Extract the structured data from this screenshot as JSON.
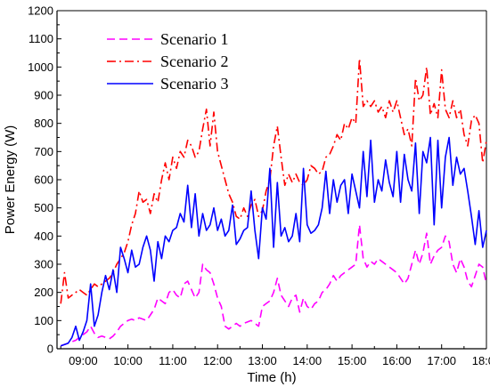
{
  "chart_data": {
    "type": "line",
    "title": "",
    "xlabel": "Time (h)",
    "ylabel": "Power Energy (W)",
    "xlim": [
      "08:25",
      "18:00"
    ],
    "ylim": [
      0,
      1200
    ],
    "x_ticks": [
      "09:00",
      "10:00",
      "11:00",
      "12:00",
      "13:00",
      "14:00",
      "15:00",
      "16:00",
      "17:00",
      "18:00"
    ],
    "y_ticks": [
      0,
      100,
      200,
      300,
      400,
      500,
      600,
      700,
      800,
      900,
      1000,
      1100,
      1200
    ],
    "grid": false,
    "legend_position": "top-left",
    "colors": {
      "Scenario 1": "#ff00ff",
      "Scenario 2": "#ff0000",
      "Scenario 3": "#0000ff"
    },
    "dash_styles": {
      "Scenario 1": "dashed",
      "Scenario 2": "dash-dot",
      "Scenario 3": "solid"
    },
    "x": [
      "08:30",
      "08:35",
      "08:40",
      "08:45",
      "08:50",
      "08:55",
      "09:00",
      "09:05",
      "09:10",
      "09:15",
      "09:20",
      "09:25",
      "09:30",
      "09:35",
      "09:40",
      "09:45",
      "09:50",
      "09:55",
      "10:00",
      "10:05",
      "10:10",
      "10:15",
      "10:20",
      "10:25",
      "10:30",
      "10:35",
      "10:40",
      "10:45",
      "10:50",
      "10:55",
      "11:00",
      "11:05",
      "11:10",
      "11:15",
      "11:20",
      "11:25",
      "11:30",
      "11:35",
      "11:40",
      "11:45",
      "11:50",
      "11:55",
      "12:00",
      "12:05",
      "12:10",
      "12:15",
      "12:20",
      "12:25",
      "12:30",
      "12:35",
      "12:40",
      "12:45",
      "12:50",
      "12:55",
      "13:00",
      "13:05",
      "13:10",
      "13:15",
      "13:20",
      "13:25",
      "13:30",
      "13:35",
      "13:40",
      "13:45",
      "13:50",
      "13:55",
      "14:00",
      "14:05",
      "14:10",
      "14:15",
      "14:20",
      "14:25",
      "14:30",
      "14:35",
      "14:40",
      "14:45",
      "14:50",
      "14:55",
      "15:00",
      "15:05",
      "15:10",
      "15:15",
      "15:20",
      "15:25",
      "15:30",
      "15:35",
      "15:40",
      "15:45",
      "15:50",
      "15:55",
      "16:00",
      "16:05",
      "16:10",
      "16:15",
      "16:20",
      "16:25",
      "16:30",
      "16:35",
      "16:40",
      "16:45",
      "16:50",
      "16:55",
      "17:00",
      "17:05",
      "17:10",
      "17:15",
      "17:20",
      "17:25",
      "17:30",
      "17:35",
      "17:40",
      "17:45",
      "17:50",
      "17:55",
      "18:00"
    ],
    "series": [
      {
        "name": "Scenario 1",
        "values": [
          10,
          15,
          20,
          25,
          30,
          40,
          50,
          60,
          80,
          55,
          40,
          45,
          40,
          35,
          45,
          60,
          80,
          90,
          100,
          105,
          100,
          110,
          105,
          100,
          120,
          140,
          180,
          170,
          160,
          200,
          210,
          190,
          180,
          230,
          240,
          210,
          180,
          200,
          300,
          280,
          270,
          230,
          180,
          150,
          80,
          70,
          80,
          90,
          80,
          90,
          95,
          100,
          90,
          80,
          150,
          160,
          170,
          200,
          250,
          190,
          170,
          150,
          180,
          190,
          130,
          180,
          150,
          140,
          160,
          170,
          200,
          210,
          230,
          260,
          240,
          260,
          270,
          280,
          290,
          300,
          440,
          320,
          290,
          310,
          300,
          320,
          310,
          300,
          290,
          280,
          270,
          250,
          230,
          250,
          300,
          350,
          300,
          340,
          410,
          300,
          330,
          350,
          360,
          400,
          380,
          300,
          270,
          320,
          290,
          240,
          220,
          260,
          300,
          290,
          230
        ]
      },
      {
        "name": "Scenario 2",
        "values": [
          160,
          270,
          180,
          190,
          200,
          210,
          200,
          190,
          210,
          230,
          220,
          230,
          240,
          250,
          270,
          300,
          320,
          340,
          380,
          440,
          480,
          560,
          520,
          530,
          480,
          550,
          520,
          600,
          660,
          600,
          680,
          640,
          700,
          680,
          740,
          720,
          680,
          700,
          780,
          850,
          720,
          840,
          700,
          650,
          600,
          550,
          520,
          470,
          460,
          500,
          470,
          510,
          530,
          470,
          490,
          560,
          600,
          720,
          790,
          680,
          580,
          620,
          590,
          620,
          590,
          580,
          600,
          650,
          640,
          620,
          630,
          680,
          690,
          720,
          760,
          740,
          800,
          780,
          820,
          800,
          1030,
          860,
          880,
          860,
          880,
          840,
          860,
          820,
          880,
          840,
          880,
          820,
          760,
          780,
          720,
          960,
          880,
          900,
          1000,
          830,
          870,
          820,
          990,
          850,
          820,
          880,
          820,
          850,
          760,
          720,
          810,
          830,
          800,
          660,
          740
        ]
      },
      {
        "name": "Scenario 3",
        "values": [
          10,
          15,
          20,
          40,
          80,
          30,
          60,
          100,
          230,
          80,
          120,
          200,
          260,
          210,
          280,
          200,
          360,
          320,
          270,
          350,
          290,
          300,
          360,
          400,
          350,
          240,
          380,
          320,
          400,
          380,
          420,
          430,
          480,
          450,
          580,
          430,
          550,
          400,
          480,
          420,
          440,
          500,
          420,
          460,
          400,
          420,
          510,
          370,
          390,
          420,
          430,
          560,
          420,
          320,
          500,
          460,
          640,
          360,
          590,
          400,
          430,
          380,
          400,
          480,
          380,
          640,
          440,
          410,
          420,
          440,
          500,
          630,
          480,
          600,
          520,
          580,
          600,
          480,
          620,
          560,
          500,
          700,
          540,
          740,
          520,
          600,
          560,
          670,
          590,
          540,
          700,
          520,
          690,
          600,
          560,
          730,
          480,
          700,
          660,
          750,
          440,
          740,
          500,
          680,
          750,
          580,
          680,
          620,
          640,
          560,
          470,
          370,
          490,
          360,
          420
        ]
      }
    ]
  }
}
